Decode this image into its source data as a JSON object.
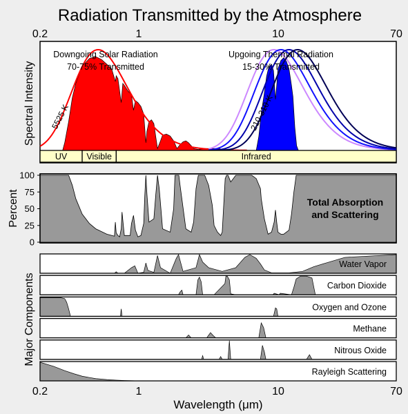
{
  "chart_data": {
    "type": "area",
    "title": "Radiation Transmitted by the Atmosphere",
    "xlabel": "Wavelength (μm)",
    "x_scale": "log",
    "xlim": [
      0.2,
      70
    ],
    "x_ticks": [
      "0.2",
      "1",
      "10",
      "70"
    ],
    "spectral_panel": {
      "ylabel": "Spectral Intensity",
      "solar": {
        "label": "Downgoing Solar Radiation",
        "transmitted": "70-75% Transmitted",
        "curve_label": "5525 K",
        "peak_um": 0.52,
        "color": "#ff0000",
        "transmitted_x": [
          0.25,
          0.29,
          0.3,
          0.32,
          0.34,
          0.36,
          0.4,
          0.45,
          0.5,
          0.55,
          0.6,
          0.65,
          0.69,
          0.7,
          0.72,
          0.76,
          0.78,
          0.8,
          0.85,
          0.9,
          0.93,
          0.96,
          1.0,
          1.05,
          1.1,
          1.14,
          1.16,
          1.2,
          1.25,
          1.3,
          1.38,
          1.45,
          1.5,
          1.6,
          1.7,
          1.8,
          1.9,
          2.0,
          2.1,
          2.2,
          2.3,
          2.4,
          2.5,
          2.7,
          3.0,
          3.5,
          3.8,
          4.0,
          4.2
        ],
        "transmitted_y": [
          0.0,
          0.0,
          0.08,
          0.3,
          0.55,
          0.7,
          0.88,
          0.96,
          0.98,
          0.95,
          0.9,
          0.85,
          0.72,
          0.78,
          0.75,
          0.5,
          0.7,
          0.68,
          0.62,
          0.58,
          0.42,
          0.52,
          0.5,
          0.46,
          0.38,
          0.08,
          0.2,
          0.3,
          0.32,
          0.28,
          0.02,
          0.1,
          0.16,
          0.17,
          0.15,
          0.1,
          0.02,
          0.06,
          0.09,
          0.1,
          0.08,
          0.05,
          0.02,
          0.01,
          0.02,
          0.02,
          0.02,
          0.01,
          0.0
        ]
      },
      "thermal": {
        "label": "Upgoing Thermal Radiation",
        "transmitted": "15-30% Transmitted",
        "curve_label": "210-310 K",
        "peaks_um": [
          9.35,
          10.5,
          12.0,
          13.8
        ],
        "colors": [
          "#cc88ff",
          "#1111ff",
          "#0000aa",
          "#000055"
        ],
        "transmitted_x": [
          7.0,
          7.3,
          7.6,
          8.0,
          8.3,
          8.6,
          9.0,
          9.3,
          9.6,
          9.8,
          10.0,
          10.5,
          11.0,
          11.5,
          12.0,
          12.5,
          12.8,
          13.2,
          13.6,
          14.0
        ],
        "transmitted_y": [
          0.0,
          0.15,
          0.4,
          0.62,
          0.8,
          0.9,
          0.93,
          0.86,
          0.55,
          0.7,
          0.88,
          0.97,
          1.0,
          0.96,
          0.88,
          0.7,
          0.58,
          0.25,
          0.05,
          0.0
        ],
        "color": "#0000ff"
      },
      "bands": [
        {
          "label": "UV",
          "from": 0.2,
          "to": 0.4
        },
        {
          "label": "Visible",
          "from": 0.4,
          "to": 0.7
        },
        {
          "label": "Infrared",
          "from": 0.7,
          "to": 70
        }
      ],
      "band_color": "#ffffc8"
    },
    "total_panel": {
      "ylabel": "Percent",
      "label": "Total Absorption and Scattering",
      "label_lines": [
        "Total Absorption",
        "and Scattering"
      ],
      "ylim": [
        0,
        100
      ],
      "y_ticks": [
        "0",
        "25",
        "50",
        "75",
        "100"
      ],
      "x": [
        0.2,
        0.3,
        0.32,
        0.34,
        0.36,
        0.4,
        0.45,
        0.5,
        0.6,
        0.68,
        0.69,
        0.7,
        0.72,
        0.74,
        0.76,
        0.77,
        0.8,
        0.88,
        0.9,
        0.93,
        0.96,
        1.0,
        1.05,
        1.1,
        1.12,
        1.14,
        1.16,
        1.2,
        1.3,
        1.34,
        1.38,
        1.42,
        1.46,
        1.5,
        1.7,
        1.8,
        1.84,
        1.88,
        1.92,
        1.96,
        2.0,
        2.2,
        2.4,
        2.5,
        2.6,
        2.7,
        3.0,
        3.2,
        3.4,
        3.5,
        3.7,
        3.9,
        4.0,
        4.2,
        4.3,
        4.4,
        4.6,
        4.8,
        5.0,
        5.5,
        6.0,
        6.5,
        7.0,
        7.5,
        7.6,
        8.0,
        8.5,
        9.0,
        9.4,
        9.6,
        9.8,
        10.0,
        10.5,
        11.0,
        12.0,
        12.5,
        13.0,
        13.5,
        14.0,
        15.0,
        17.0,
        20.0,
        25.0,
        70.0
      ],
      "y": [
        100,
        100,
        100,
        85,
        65,
        42,
        28,
        20,
        12,
        9,
        30,
        14,
        10,
        8,
        20,
        45,
        10,
        10,
        28,
        40,
        18,
        8,
        10,
        28,
        70,
        100,
        72,
        30,
        35,
        70,
        100,
        80,
        50,
        20,
        15,
        50,
        100,
        100,
        100,
        100,
        85,
        20,
        15,
        30,
        80,
        100,
        100,
        85,
        55,
        25,
        15,
        10,
        15,
        95,
        100,
        100,
        90,
        95,
        100,
        100,
        100,
        100,
        95,
        80,
        65,
        35,
        12,
        15,
        30,
        48,
        30,
        15,
        12,
        12,
        18,
        42,
        75,
        100,
        100,
        100,
        100,
        100,
        100,
        100
      ]
    },
    "components": [
      {
        "name": "Water Vapor",
        "x": [
          0.2,
          0.68,
          0.7,
          0.72,
          0.8,
          0.9,
          0.95,
          1.0,
          1.1,
          1.14,
          1.18,
          1.3,
          1.38,
          1.45,
          1.7,
          1.88,
          1.95,
          2.1,
          2.6,
          2.75,
          2.9,
          3.2,
          4.0,
          5.0,
          5.8,
          6.3,
          7.0,
          7.5,
          8.0,
          9.0,
          12.0,
          15.0,
          18.0,
          22.0,
          30.0,
          70.0
        ],
        "y": [
          0,
          0,
          8,
          0,
          0,
          30,
          40,
          0,
          5,
          55,
          15,
          5,
          95,
          30,
          0,
          80,
          100,
          10,
          30,
          100,
          60,
          30,
          10,
          30,
          85,
          100,
          80,
          50,
          18,
          2,
          2,
          10,
          35,
          55,
          85,
          100
        ]
      },
      {
        "name": "Carbon Dioxide",
        "x": [
          0.2,
          1.95,
          2.0,
          2.06,
          2.1,
          2.6,
          2.68,
          2.75,
          2.83,
          2.9,
          3.5,
          4.18,
          4.25,
          4.35,
          4.5,
          4.6,
          5.0,
          9.2,
          9.4,
          10.2,
          10.4,
          12.5,
          13.0,
          13.5,
          14.5,
          16.0,
          17.5,
          18.5,
          70.0
        ],
        "y": [
          0,
          0,
          15,
          25,
          0,
          0,
          80,
          95,
          70,
          0,
          0,
          60,
          100,
          100,
          80,
          5,
          0,
          0,
          8,
          0,
          8,
          0,
          40,
          85,
          100,
          100,
          90,
          0,
          0
        ]
      },
      {
        "name": "Oxygen and Ozone",
        "x": [
          0.2,
          0.28,
          0.3,
          0.31,
          0.32,
          0.325,
          0.33,
          0.35,
          0.75,
          0.76,
          0.77,
          9.3,
          9.6,
          9.8,
          10.0,
          70.0
        ],
        "y": [
          100,
          100,
          95,
          75,
          40,
          20,
          0,
          0,
          0,
          40,
          0,
          0,
          45,
          40,
          0,
          0
        ]
      },
      {
        "name": "Methane",
        "x": [
          0.2,
          2.2,
          2.3,
          2.4,
          3.1,
          3.3,
          3.45,
          3.6,
          7.3,
          7.6,
          7.9,
          8.2,
          70.0
        ],
        "y": [
          0,
          0,
          15,
          0,
          0,
          28,
          12,
          0,
          0,
          80,
          55,
          0,
          0
        ]
      },
      {
        "name": "Nitrous Oxide",
        "x": [
          0.2,
          2.85,
          2.9,
          2.95,
          3.8,
          3.9,
          4.0,
          4.4,
          4.5,
          4.6,
          7.5,
          7.75,
          8.0,
          8.2,
          16.0,
          16.8,
          17.5,
          70.0
        ],
        "y": [
          0,
          0,
          20,
          0,
          0,
          15,
          0,
          0,
          100,
          0,
          0,
          75,
          40,
          0,
          0,
          25,
          0,
          0
        ]
      },
      {
        "name": "Rayleigh Scattering",
        "x": [
          0.2,
          0.25,
          0.3,
          0.35,
          0.4,
          0.5,
          0.6,
          0.7,
          0.8,
          0.9,
          1.0,
          70.0
        ],
        "y": [
          100,
          78,
          55,
          38,
          25,
          12,
          7,
          4,
          2,
          1,
          0,
          0
        ]
      }
    ],
    "components_ylabel": "Major Components",
    "fill_color": "#999999",
    "grid": false,
    "legend": "none"
  }
}
